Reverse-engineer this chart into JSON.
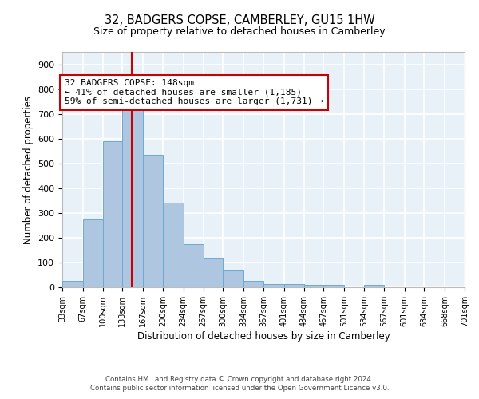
{
  "title": "32, BADGERS COPSE, CAMBERLEY, GU15 1HW",
  "subtitle": "Size of property relative to detached houses in Camberley",
  "xlabel": "Distribution of detached houses by size in Camberley",
  "ylabel": "Number of detached properties",
  "bar_color": "#aec6df",
  "bar_edge_color": "#6aaad4",
  "bg_color": "#e8f0f8",
  "grid_color": "white",
  "annotation_box_color": "#cc0000",
  "property_line_color": "#cc0000",
  "property_size": 148,
  "annotation_text": "32 BADGERS COPSE: 148sqm\n← 41% of detached houses are smaller (1,185)\n59% of semi-detached houses are larger (1,731) →",
  "bin_edges": [
    33,
    67,
    100,
    133,
    167,
    200,
    234,
    267,
    300,
    334,
    367,
    401,
    434,
    467,
    501,
    534,
    567,
    601,
    634,
    668,
    701
  ],
  "bin_heights": [
    27,
    275,
    590,
    745,
    535,
    340,
    175,
    120,
    70,
    25,
    13,
    13,
    10,
    10,
    0,
    10,
    0,
    0,
    0,
    0
  ],
  "ylim": [
    0,
    950
  ],
  "yticks": [
    0,
    100,
    200,
    300,
    400,
    500,
    600,
    700,
    800,
    900
  ],
  "footnote1": "Contains HM Land Registry data © Crown copyright and database right 2024.",
  "footnote2": "Contains public sector information licensed under the Open Government Licence v3.0."
}
